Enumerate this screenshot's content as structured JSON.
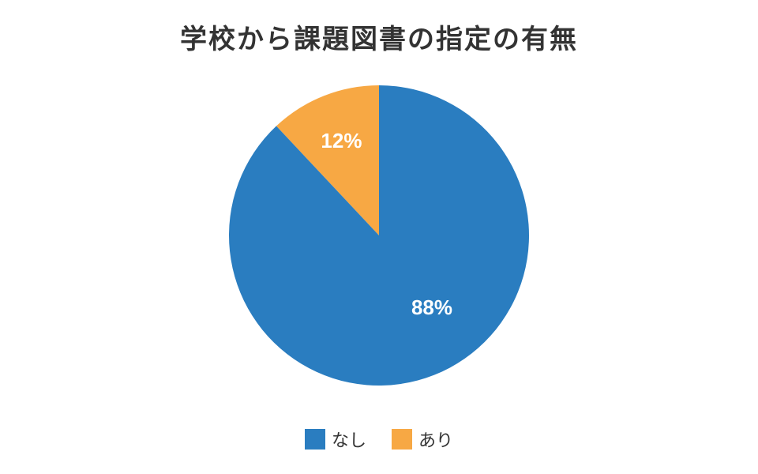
{
  "chart_data": {
    "type": "pie",
    "title": "学校から課題図書の指定の有無",
    "slices": [
      {
        "label": "あり",
        "value": 12,
        "display": "12%",
        "color": "#F7A844"
      },
      {
        "label": "なし",
        "value": 88,
        "display": "88%",
        "color": "#2A7DC0"
      }
    ],
    "legend": {
      "placement": "bottom",
      "entries": [
        {
          "label": "なし",
          "color": "#2A7DC0"
        },
        {
          "label": "あり",
          "color": "#F7A844"
        }
      ]
    }
  }
}
